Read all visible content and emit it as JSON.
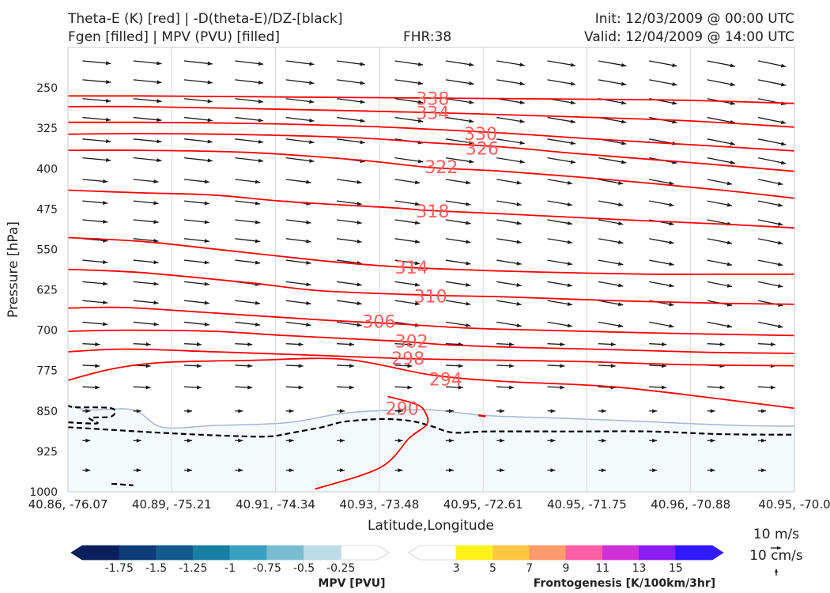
{
  "header": {
    "left_line1": "Theta-E (K) [red] | -D(theta-E)/DZ-[black]",
    "left_line2": "Fgen [filled] | MPV (PVU) [filled]",
    "center": "FHR:38",
    "right_line1": "Init: 12/03/2009 @ 00:00 UTC",
    "right_line2": "Valid: 12/04/2009 @ 14:00 UTC"
  },
  "colors": {
    "theta_e": "#ff0000",
    "theta_e_label": "#ff6060",
    "dthetae_dz": "#000000",
    "mpv_fill": "#f4fafb",
    "mpv_edge": "#a8b4d8",
    "arrows": "#1a1a1a"
  },
  "chart_data": {
    "type": "cross-section",
    "xlabel": "Latitude,Longitude",
    "ylabel": "Pressure [hPa]",
    "x_ticks": [
      "40.86, -76.07",
      "40.89, -75.21",
      "40.91, -74.34",
      "40.93, -73.48",
      "40.95, -72.61",
      "40.95, -71.75",
      "40.96, -70.88",
      "40.95, -70.0"
    ],
    "y_ticks": [
      250,
      325,
      400,
      475,
      550,
      625,
      700,
      775,
      850,
      925,
      1000
    ],
    "ylim": [
      1000,
      175
    ],
    "y_scale": "linear, inverted",
    "theta_e_contours": [
      {
        "value": 290,
        "label": "290",
        "points": [
          [
            0.34,
            995
          ],
          [
            0.43,
            955
          ],
          [
            0.47,
            900
          ],
          [
            0.494,
            875
          ],
          [
            0.492,
            853
          ],
          [
            0.48,
            838
          ],
          [
            0.44,
            823
          ]
        ]
      },
      {
        "value": 294,
        "label": "294",
        "points": [
          [
            0,
            793
          ],
          [
            0.06,
            772
          ],
          [
            0.13,
            760
          ],
          [
            0.25,
            756
          ],
          [
            0.38,
            754
          ],
          [
            0.5,
            783
          ],
          [
            0.6,
            795
          ],
          [
            0.75,
            805
          ],
          [
            0.9,
            828
          ],
          [
            1,
            845
          ]
        ]
      },
      {
        "value": 298,
        "label": "298",
        "points": [
          [
            0,
            740
          ],
          [
            0.08,
            735
          ],
          [
            0.2,
            740
          ],
          [
            0.35,
            747
          ],
          [
            0.45,
            752
          ],
          [
            0.55,
            755
          ],
          [
            0.7,
            758
          ],
          [
            0.85,
            764
          ],
          [
            1,
            766
          ]
        ]
      },
      {
        "value": 302,
        "label": "302",
        "points": [
          [
            0,
            702
          ],
          [
            0.08,
            700
          ],
          [
            0.2,
            702
          ],
          [
            0.3,
            710
          ],
          [
            0.45,
            720
          ],
          [
            0.52,
            727
          ],
          [
            0.62,
            732
          ],
          [
            0.75,
            736
          ],
          [
            0.88,
            741
          ],
          [
            1,
            743
          ]
        ]
      },
      {
        "value": 306,
        "label": "306",
        "points": [
          [
            0,
            659
          ],
          [
            0.08,
            658
          ],
          [
            0.2,
            668
          ],
          [
            0.35,
            681
          ],
          [
            0.45,
            688
          ],
          [
            0.55,
            696
          ],
          [
            0.65,
            700
          ],
          [
            0.8,
            705
          ],
          [
            1,
            710
          ]
        ]
      },
      {
        "value": 310,
        "label": "310",
        "points": [
          [
            0,
            587
          ],
          [
            0.1,
            593
          ],
          [
            0.25,
            612
          ],
          [
            0.35,
            627
          ],
          [
            0.5,
            635
          ],
          [
            0.6,
            638
          ],
          [
            0.75,
            645
          ],
          [
            0.9,
            650
          ],
          [
            1,
            652
          ]
        ]
      },
      {
        "value": 314,
        "label": "314",
        "points": [
          [
            0,
            528
          ],
          [
            0.1,
            535
          ],
          [
            0.2,
            549
          ],
          [
            0.35,
            571
          ],
          [
            0.45,
            582
          ],
          [
            0.55,
            588
          ],
          [
            0.65,
            592
          ],
          [
            0.8,
            596
          ],
          [
            0.9,
            596
          ],
          [
            1,
            596
          ]
        ]
      },
      {
        "value": 318,
        "label": "318",
        "points": [
          [
            0,
            440
          ],
          [
            0.1,
            445
          ],
          [
            0.2,
            449
          ],
          [
            0.3,
            461
          ],
          [
            0.45,
            473
          ],
          [
            0.5,
            478
          ],
          [
            0.6,
            484
          ],
          [
            0.75,
            494
          ],
          [
            0.9,
            503
          ],
          [
            1,
            510
          ]
        ]
      },
      {
        "value": 322,
        "label": "322",
        "points": [
          [
            0,
            366
          ],
          [
            0.1,
            366
          ],
          [
            0.25,
            370
          ],
          [
            0.4,
            384
          ],
          [
            0.5,
            398
          ],
          [
            0.6,
            405
          ],
          [
            0.75,
            421
          ],
          [
            0.9,
            440
          ],
          [
            1,
            455
          ]
        ]
      },
      {
        "value": 326,
        "label": "326",
        "points": [
          [
            0,
            336
          ],
          [
            0.1,
            335
          ],
          [
            0.25,
            337
          ],
          [
            0.4,
            343
          ],
          [
            0.5,
            352
          ],
          [
            0.6,
            360
          ],
          [
            0.7,
            372
          ],
          [
            0.85,
            388
          ],
          [
            1,
            405
          ]
        ]
      },
      {
        "value": 330,
        "label": "330",
        "points": [
          [
            0,
            314
          ],
          [
            0.1,
            314
          ],
          [
            0.25,
            316
          ],
          [
            0.4,
            321
          ],
          [
            0.5,
            327
          ],
          [
            0.6,
            334
          ],
          [
            0.7,
            343
          ],
          [
            0.85,
            355
          ],
          [
            1,
            367
          ]
        ]
      },
      {
        "value": 334,
        "label": "334",
        "points": [
          [
            0,
            285
          ],
          [
            0.1,
            285
          ],
          [
            0.3,
            290
          ],
          [
            0.5,
            296
          ],
          [
            0.7,
            304
          ],
          [
            0.85,
            311
          ],
          [
            1,
            323
          ]
        ]
      },
      {
        "value": 338,
        "label": "338",
        "points": [
          [
            0,
            265
          ],
          [
            0.1,
            265
          ],
          [
            0.3,
            267
          ],
          [
            0.5,
            269
          ],
          [
            0.7,
            271
          ],
          [
            0.85,
            273
          ],
          [
            1,
            279
          ]
        ]
      }
    ],
    "theta_e_label_positions": [
      {
        "label": "290",
        "x": 0.46,
        "y": 845
      },
      {
        "label": "294",
        "x": 0.52,
        "y": 791
      },
      {
        "label": "298",
        "x": 0.468,
        "y": 752
      },
      {
        "label": "302",
        "x": 0.473,
        "y": 720
      },
      {
        "label": "306",
        "x": 0.428,
        "y": 684
      },
      {
        "label": "310",
        "x": 0.499,
        "y": 637
      },
      {
        "label": "314",
        "x": 0.473,
        "y": 583
      },
      {
        "label": "318",
        "x": 0.502,
        "y": 479
      },
      {
        "label": "322",
        "x": 0.514,
        "y": 397
      },
      {
        "label": "326",
        "x": 0.57,
        "y": 362
      },
      {
        "label": "330",
        "x": 0.568,
        "y": 335
      },
      {
        "label": "334",
        "x": 0.502,
        "y": 296
      },
      {
        "label": "338",
        "x": 0.502,
        "y": 270
      }
    ],
    "dthetae_dz_contours": [
      {
        "points": [
          [
            0,
            880
          ],
          [
            0.06,
            885
          ],
          [
            0.15,
            892
          ],
          [
            0.24,
            897
          ],
          [
            0.28,
            897
          ],
          [
            0.31,
            890
          ],
          [
            0.35,
            880
          ],
          [
            0.38,
            870
          ],
          [
            0.43,
            865
          ],
          [
            0.47,
            868
          ],
          [
            0.5,
            878
          ],
          [
            0.53,
            890
          ],
          [
            0.58,
            888
          ],
          [
            0.7,
            888
          ],
          [
            0.8,
            888
          ],
          [
            0.9,
            893
          ],
          [
            1,
            894
          ]
        ]
      },
      {
        "points": [
          [
            0,
            871
          ],
          [
            0.04,
            873
          ],
          [
            0.03,
            863
          ],
          [
            0.06,
            860
          ],
          [
            0.06,
            845
          ],
          [
            0.01,
            843
          ],
          [
            0,
            840
          ]
        ]
      },
      {
        "points": [
          [
            0.06,
            985
          ],
          [
            0.09,
            988
          ]
        ]
      }
    ],
    "mpv_region": {
      "edge": [
        [
          0,
          840
        ],
        [
          0.03,
          848
        ],
        [
          0.09,
          848
        ],
        [
          0.13,
          880
        ],
        [
          0.2,
          877
        ],
        [
          0.3,
          872
        ],
        [
          0.37,
          856
        ],
        [
          0.42,
          850
        ],
        [
          0.5,
          848
        ],
        [
          0.57,
          858
        ],
        [
          0.65,
          862
        ],
        [
          0.75,
          867
        ],
        [
          0.85,
          873
        ],
        [
          0.93,
          877
        ],
        [
          1,
          878
        ]
      ],
      "bottom": 1000
    },
    "wind_vectors": {
      "x": [
        0.02,
        0.09,
        0.16,
        0.23,
        0.3,
        0.37,
        0.45,
        0.52,
        0.59,
        0.66,
        0.73,
        0.8,
        0.88,
        0.95
      ],
      "levels": [
        200,
        235,
        270,
        305,
        345,
        380,
        420,
        460,
        495,
        530,
        570,
        610,
        645,
        685,
        725,
        765,
        805,
        850,
        905,
        960
      ],
      "reference_x": "10 m/s",
      "reference_y": "10 cm/s"
    },
    "colorbar_mpv": {
      "title": "MPV [PVU]",
      "ticks": [
        -1.75,
        -1.5,
        -1.25,
        -1.0,
        -0.75,
        -0.5,
        -0.25
      ],
      "colors": [
        "#0a1f5c",
        "#0f3c7a",
        "#135b8d",
        "#177fa2",
        "#3aa0c0",
        "#7bbcd3",
        "#bcdde8",
        "#ffffff"
      ]
    },
    "colorbar_fgen": {
      "title": "Frontogenesis [K/100km/3hr]",
      "ticks": [
        3,
        5,
        7,
        9,
        11,
        13,
        15
      ],
      "colors": [
        "#ffffff",
        "#fff21a",
        "#ffc640",
        "#ff9a6a",
        "#ff5ea8",
        "#d030d8",
        "#8a1ef0",
        "#3018ff"
      ]
    }
  }
}
